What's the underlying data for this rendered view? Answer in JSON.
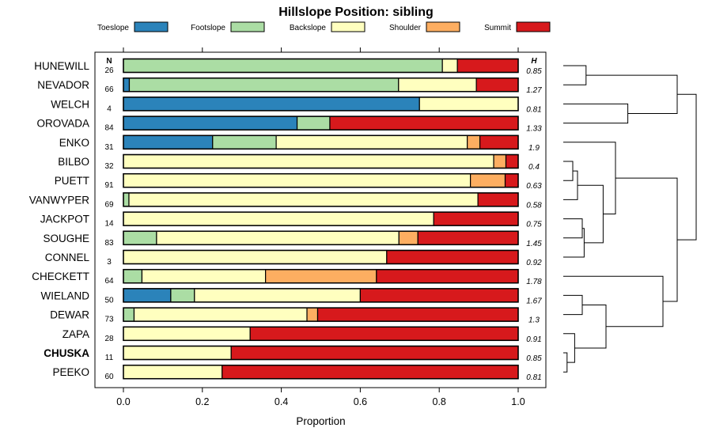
{
  "chart_data": {
    "type": "bar",
    "orientation": "horizontal",
    "stacked": true,
    "title": "Hillslope Position: sibling",
    "xlabel": "Proportion",
    "xlim": [
      0,
      1
    ],
    "xticks": [
      "0.0",
      "0.2",
      "0.4",
      "0.6",
      "0.8",
      "1.0"
    ],
    "n_header": "N",
    "h_header": "H",
    "legend": [
      {
        "name": "Toeslope",
        "color": "#2b83ba"
      },
      {
        "name": "Footslope",
        "color": "#abdda4"
      },
      {
        "name": "Backslope",
        "color": "#ffffbf"
      },
      {
        "name": "Shoulder",
        "color": "#fdae61"
      },
      {
        "name": "Summit",
        "color": "#d7191c"
      }
    ],
    "rows": [
      {
        "name": "HUNEWILL",
        "n": "26",
        "h": "0.85",
        "bold": false,
        "values": [
          0,
          0.808,
          0.038,
          0,
          0.154
        ]
      },
      {
        "name": "NEVADOR",
        "n": "66",
        "h": "1.27",
        "bold": false,
        "values": [
          0.015,
          0.682,
          0.197,
          0,
          0.106
        ]
      },
      {
        "name": "WELCH",
        "n": "4",
        "h": "0.81",
        "bold": false,
        "values": [
          0.75,
          0,
          0.25,
          0,
          0
        ]
      },
      {
        "name": "OROVADA",
        "n": "84",
        "h": "1.33",
        "bold": false,
        "values": [
          0.44,
          0.083,
          0,
          0,
          0.477
        ]
      },
      {
        "name": "ENKO",
        "n": "31",
        "h": "1.9",
        "bold": false,
        "values": [
          0.226,
          0.161,
          0.484,
          0.032,
          0.097
        ]
      },
      {
        "name": "BILBO",
        "n": "32",
        "h": "0.4",
        "bold": false,
        "values": [
          0,
          0,
          0.938,
          0.031,
          0.031
        ]
      },
      {
        "name": "PUETT",
        "n": "91",
        "h": "0.63",
        "bold": false,
        "values": [
          0,
          0,
          0.879,
          0.088,
          0.033
        ]
      },
      {
        "name": "VANWYPER",
        "n": "69",
        "h": "0.58",
        "bold": false,
        "values": [
          0,
          0.014,
          0.884,
          0,
          0.102
        ]
      },
      {
        "name": "JACKPOT",
        "n": "14",
        "h": "0.75",
        "bold": false,
        "values": [
          0,
          0,
          0.786,
          0,
          0.214
        ]
      },
      {
        "name": "SOUGHE",
        "n": "83",
        "h": "1.45",
        "bold": false,
        "values": [
          0,
          0.084,
          0.614,
          0.048,
          0.254
        ]
      },
      {
        "name": "CONNEL",
        "n": "3",
        "h": "0.92",
        "bold": false,
        "values": [
          0,
          0,
          0.667,
          0,
          0.333
        ]
      },
      {
        "name": "CHECKETT",
        "n": "64",
        "h": "1.78",
        "bold": false,
        "values": [
          0,
          0.047,
          0.313,
          0.281,
          0.359
        ]
      },
      {
        "name": "WIELAND",
        "n": "50",
        "h": "1.67",
        "bold": false,
        "values": [
          0.12,
          0.06,
          0.42,
          0,
          0.4
        ]
      },
      {
        "name": "DEWAR",
        "n": "73",
        "h": "1.3",
        "bold": false,
        "values": [
          0,
          0.027,
          0.438,
          0.027,
          0.508
        ]
      },
      {
        "name": "ZAPA",
        "n": "28",
        "h": "0.91",
        "bold": false,
        "values": [
          0,
          0,
          0.321,
          0,
          0.679
        ]
      },
      {
        "name": "CHUSKA",
        "n": "11",
        "h": "0.85",
        "bold": true,
        "values": [
          0,
          0,
          0.273,
          0,
          0.727
        ]
      },
      {
        "name": "PEEKO",
        "n": "60",
        "h": "0.81",
        "bold": false,
        "values": [
          0,
          0,
          0.25,
          0,
          0.75
        ]
      }
    ],
    "dendrogram_merges": [
      {
        "a": "CHUSKA",
        "b": "PEEKO",
        "height": 0.04
      },
      {
        "a": "ZAPA",
        "b": "m0",
        "height": 0.12
      },
      {
        "a": "BILBO",
        "b": "PUETT",
        "height": 0.1
      },
      {
        "a": "m2",
        "b": "VANWYPER",
        "height": 0.15
      },
      {
        "a": "JACKPOT",
        "b": "SOUGHE",
        "height": 0.2
      },
      {
        "a": "m4",
        "b": "CONNEL",
        "height": 0.22
      },
      {
        "a": "m3",
        "b": "m5",
        "height": 0.42
      },
      {
        "a": "m6",
        "b": "ENKO",
        "height": 0.55
      },
      {
        "a": "WIELAND",
        "b": "DEWAR",
        "height": 0.2
      },
      {
        "a": "m8",
        "b": "m1",
        "height": 0.45
      },
      {
        "a": "CHECKETT",
        "b": "m9",
        "height": 1.05
      },
      {
        "a": "m7",
        "b": "m10",
        "height": 1.2
      },
      {
        "a": "HUNEWILL",
        "b": "NEVADOR",
        "height": 0.24
      },
      {
        "a": "WELCH",
        "b": "OROVADA",
        "height": 0.68
      },
      {
        "a": "m12",
        "b": "m13",
        "height": 1.2
      },
      {
        "a": "m14",
        "b": "m11",
        "height": 1.4
      }
    ]
  }
}
